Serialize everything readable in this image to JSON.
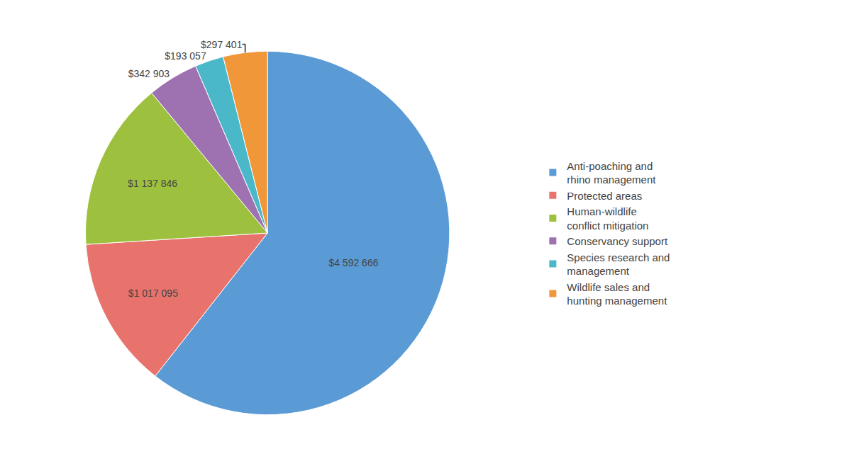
{
  "chart_data": {
    "type": "pie",
    "categories": [
      "Anti-poaching and\nrhino management",
      "Protected areas",
      "Human-wildlife\nconflict mitigation",
      "Conservancy support",
      "Species research and\nmanagement",
      "Wildlife sales and\nhunting management"
    ],
    "values": [
      4592666,
      1017095,
      1137846,
      342903,
      193057,
      297401
    ],
    "value_labels": [
      "$4 592 666",
      "$1 017 095",
      "$1 137 846",
      "$342 903",
      "$193 057",
      "$297 401"
    ],
    "colors": [
      "#5b9bd5",
      "#e8736c",
      "#9dc13f",
      "#9e72b0",
      "#4ab8c8",
      "#f0973a"
    ],
    "data_labels": true,
    "legend": "right"
  }
}
